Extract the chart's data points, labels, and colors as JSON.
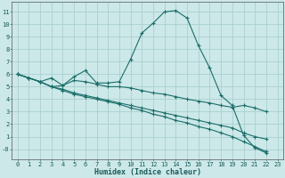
{
  "xlabel": "Humidex (Indice chaleur)",
  "bg_color": "#cce8e8",
  "grid_color": "#aacfcf",
  "line_color": "#1a6e6a",
  "xlim": [
    -0.5,
    23.5
  ],
  "ylim": [
    -0.8,
    11.8
  ],
  "xticks": [
    0,
    1,
    2,
    3,
    4,
    5,
    6,
    7,
    8,
    9,
    10,
    11,
    12,
    13,
    14,
    15,
    16,
    17,
    18,
    19,
    20,
    21,
    22,
    23
  ],
  "yticks": [
    0,
    1,
    2,
    3,
    4,
    5,
    6,
    7,
    8,
    9,
    10,
    11
  ],
  "ytick_labels": [
    "-0",
    "1",
    "2",
    "3",
    "4",
    "5",
    "6",
    "7",
    "8",
    "9",
    "10",
    "11"
  ],
  "line1_x": [
    0,
    1,
    2,
    3,
    4,
    5,
    6,
    7,
    8,
    9,
    10,
    11,
    12,
    13,
    14,
    15,
    16,
    17,
    18,
    19,
    20,
    21,
    22
  ],
  "line1_y": [
    6.0,
    5.7,
    5.4,
    5.7,
    5.1,
    5.8,
    6.3,
    5.3,
    5.3,
    5.4,
    7.2,
    9.3,
    10.1,
    11.0,
    11.1,
    10.5,
    8.3,
    6.5,
    4.3,
    3.5,
    1.1,
    0.1,
    -0.3
  ],
  "line2_x": [
    0,
    1,
    2,
    3,
    4,
    5,
    6,
    7,
    8,
    9,
    10,
    11,
    12,
    13,
    14,
    15,
    16,
    17,
    18,
    19,
    20,
    21,
    22
  ],
  "line2_y": [
    6.0,
    5.7,
    5.4,
    5.0,
    5.1,
    5.5,
    5.4,
    5.2,
    5.0,
    5.0,
    4.9,
    4.7,
    4.5,
    4.4,
    4.2,
    4.0,
    3.85,
    3.7,
    3.5,
    3.35,
    3.5,
    3.3,
    3.0
  ],
  "line3_x": [
    0,
    1,
    2,
    3,
    4,
    5,
    6,
    7,
    8,
    9,
    10,
    11,
    12,
    13,
    14,
    15,
    16,
    17,
    18,
    19,
    20,
    21,
    22
  ],
  "line3_y": [
    6.0,
    5.7,
    5.4,
    5.0,
    4.8,
    4.5,
    4.3,
    4.1,
    3.9,
    3.7,
    3.5,
    3.3,
    3.1,
    2.9,
    2.7,
    2.5,
    2.3,
    2.1,
    1.9,
    1.7,
    1.3,
    1.0,
    0.8
  ],
  "line4_x": [
    0,
    1,
    2,
    3,
    4,
    5,
    6,
    7,
    8,
    9,
    10,
    11,
    12,
    13,
    14,
    15,
    16,
    17,
    18,
    19,
    20,
    21,
    22
  ],
  "line4_y": [
    6.0,
    5.7,
    5.4,
    5.0,
    4.7,
    4.4,
    4.2,
    4.0,
    3.8,
    3.6,
    3.3,
    3.1,
    2.8,
    2.6,
    2.3,
    2.1,
    1.8,
    1.6,
    1.3,
    1.0,
    0.6,
    0.2,
    -0.2
  ]
}
